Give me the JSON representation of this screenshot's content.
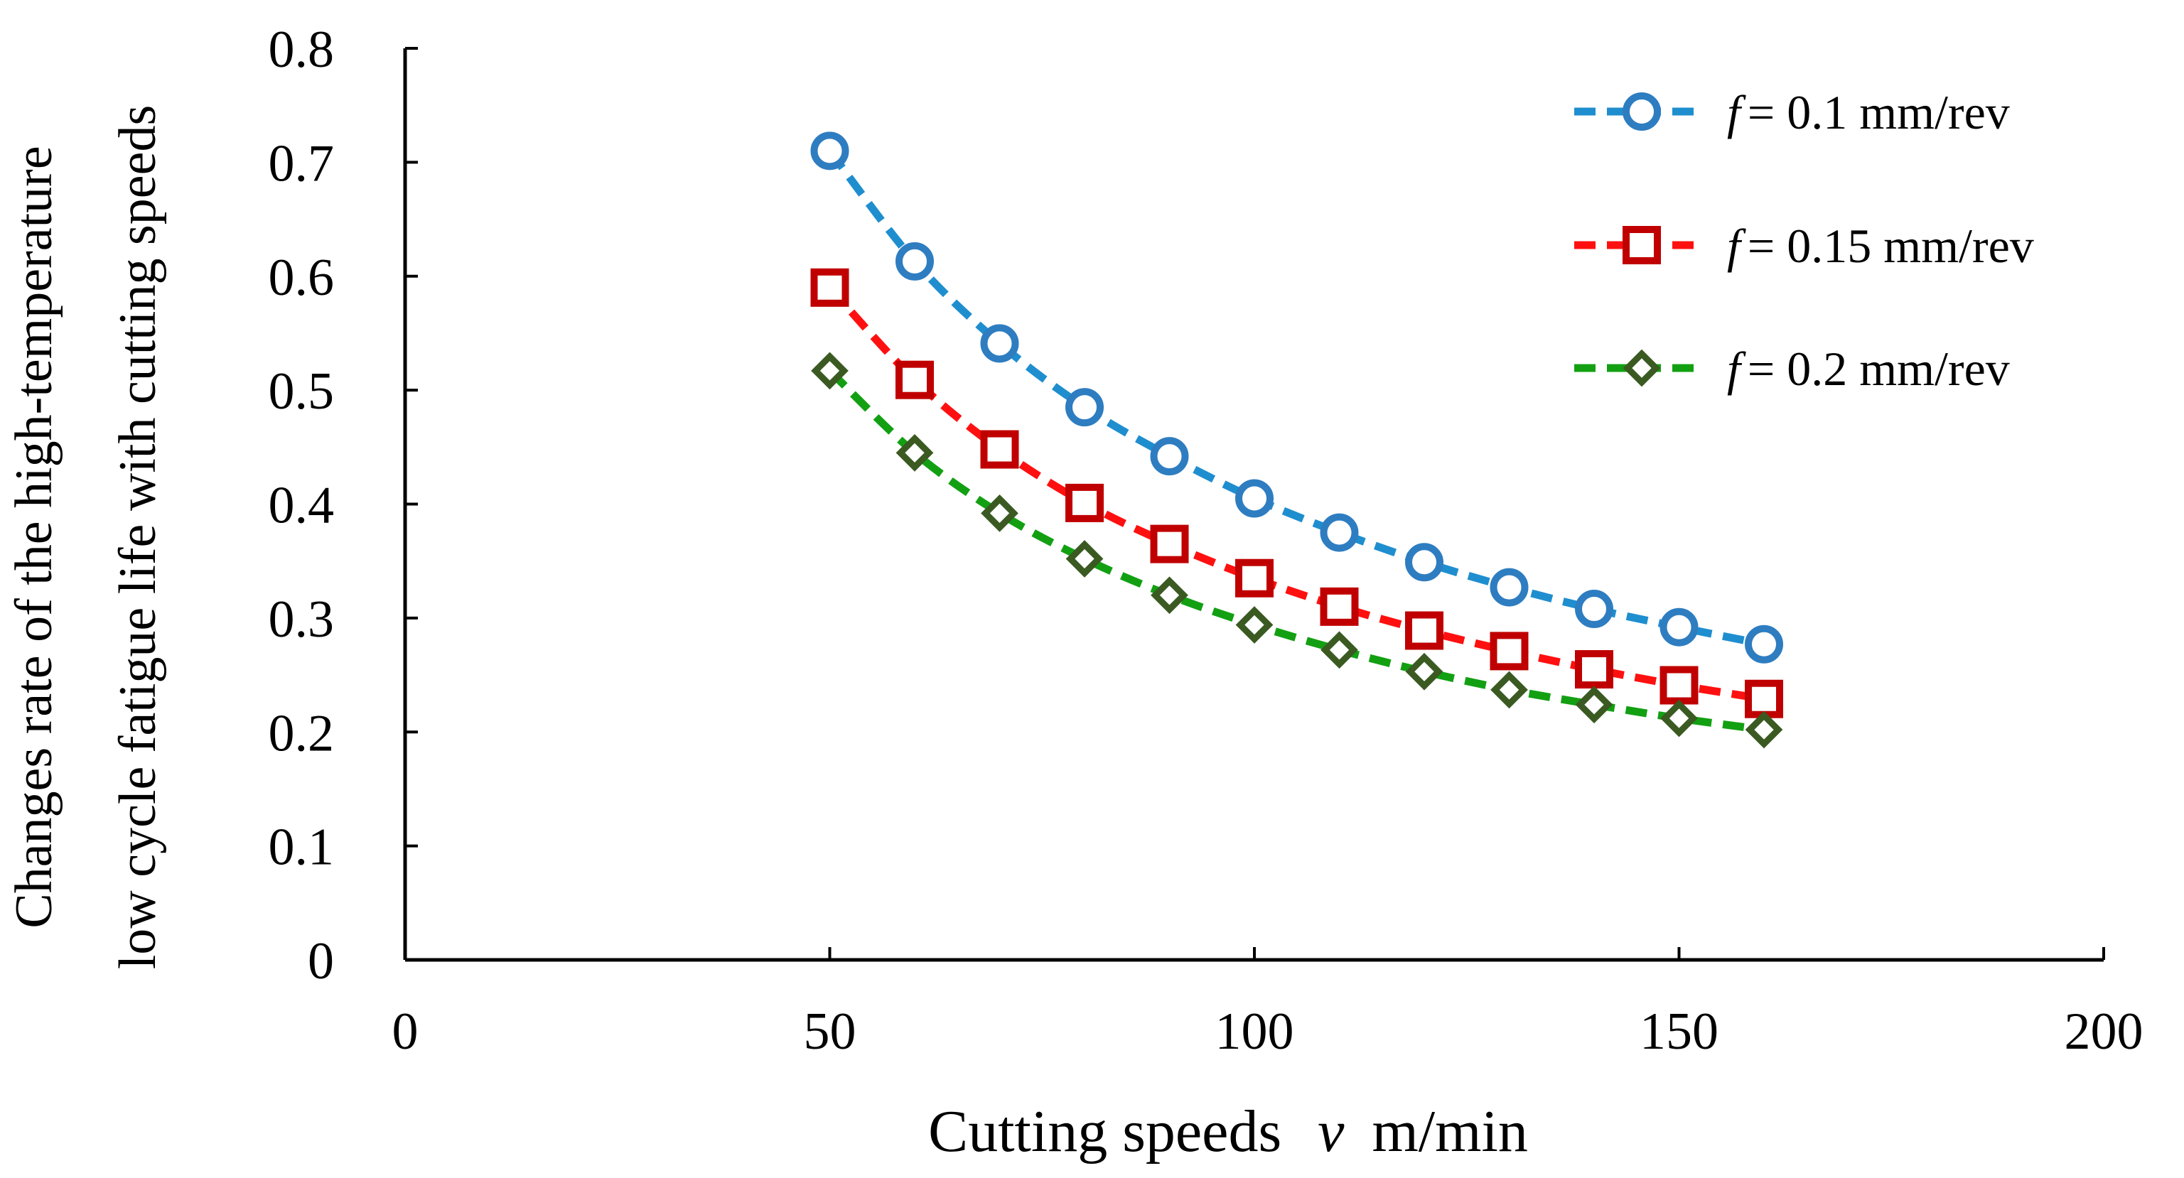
{
  "chart_data": {
    "type": "line",
    "xlabel_prefix": "Cutting speeds",
    "xlabel_var": "v",
    "xlabel_unit": "m/min",
    "ylabel_line1": "Changes rate of the high-temperature",
    "ylabel_line2": "low cycle fatigue life with cutting speeds",
    "xlim": [
      0,
      200
    ],
    "ylim": [
      0,
      0.8
    ],
    "x_ticks": [
      "0",
      "50",
      "100",
      "150",
      "200"
    ],
    "y_ticks": [
      "0",
      "0.1",
      "0.2",
      "0.3",
      "0.4",
      "0.5",
      "0.6",
      "0.7",
      "0.8"
    ],
    "x": [
      50,
      60,
      70,
      80,
      90,
      100,
      110,
      120,
      130,
      140,
      150,
      160
    ],
    "legend_position": "top-right",
    "series": [
      {
        "legend_var": "f",
        "legend_text": "= 0.1 mm/rev",
        "marker": "circle",
        "color": "#1f8ecf",
        "marker_color": "#2e7dc1",
        "values": [
          0.71,
          0.613,
          0.541,
          0.485,
          0.442,
          0.405,
          0.375,
          0.349,
          0.327,
          0.308,
          0.292,
          0.277
        ]
      },
      {
        "legend_var": "f",
        "legend_text": "= 0.15 mm/rev",
        "marker": "square",
        "color": "#ff1010",
        "marker_color": "#c00000",
        "values": [
          0.59,
          0.509,
          0.448,
          0.401,
          0.365,
          0.335,
          0.31,
          0.289,
          0.271,
          0.255,
          0.241,
          0.229
        ]
      },
      {
        "legend_var": "f",
        "legend_text": "= 0.2 mm/rev",
        "marker": "diamond",
        "color": "#12a012",
        "marker_color": "#3a5a22",
        "values": [
          0.517,
          0.445,
          0.392,
          0.352,
          0.32,
          0.294,
          0.272,
          0.253,
          0.237,
          0.224,
          0.212,
          0.202
        ]
      }
    ]
  }
}
